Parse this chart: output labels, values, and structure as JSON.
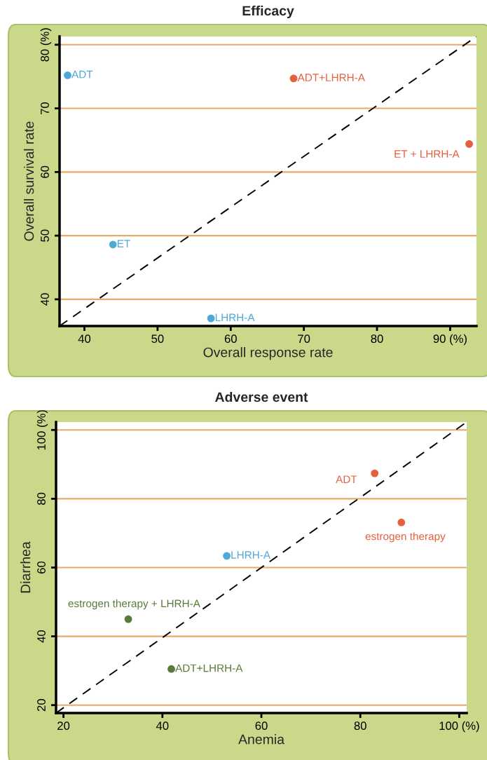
{
  "chart_data": [
    {
      "type": "scatter",
      "title": "Efficacy",
      "xlabel": "Overall response rate",
      "ylabel": "Overall survival rate",
      "xlim": [
        36.6,
        93.6
      ],
      "ylim": [
        35.8,
        81.3
      ],
      "xticks": [
        40,
        50,
        60,
        70,
        80,
        {
          "value": 90,
          "label": "90 (%)"
        }
      ],
      "yticks": [
        40,
        50,
        60,
        70,
        {
          "value": 80,
          "label": "80 (%)"
        }
      ],
      "grid": "y",
      "series": [
        {
          "color": "#4ea8d8",
          "marker": "circle",
          "x": [
            37.7,
            43.9,
            57.3
          ],
          "values": [
            75.2,
            48.6,
            37.0
          ]
        },
        {
          "color": "#e5603f",
          "marker": "circle",
          "x": [
            68.6,
            92.6
          ],
          "values": [
            74.7,
            64.4
          ]
        },
        {
          "type": "line",
          "marker": "none",
          "line_style": "dashed",
          "color": "#000000",
          "x": [
            36.6,
            93.6
          ],
          "values": [
            35.8,
            81.3
          ]
        }
      ],
      "annotations": [
        {
          "text": "ADT",
          "x": 37.7,
          "y": 75.2
        },
        {
          "text": "ET",
          "x": 43.9,
          "y": 48.6
        },
        {
          "text": "LHRH-A",
          "x": 57.3,
          "y": 37.0
        },
        {
          "text": "ADT+LHRH-A",
          "x": 68.6,
          "y": 74.7
        },
        {
          "text": "ET + LHRH-A",
          "x": 92.6,
          "y": 64.4
        }
      ]
    },
    {
      "type": "scatter",
      "title": "Adverse event",
      "xlabel": "Anemia",
      "ylabel": "Diarrhea",
      "xlim": [
        18.5,
        101.5
      ],
      "ylim": [
        17.7,
        102.3
      ],
      "xticks": [
        20,
        40,
        60,
        80,
        {
          "value": 100,
          "label": "100 (%)"
        }
      ],
      "yticks": [
        20,
        40,
        60,
        80,
        {
          "value": 100,
          "label": "100 (%)"
        }
      ],
      "grid": "y",
      "series": [
        {
          "color": "#e5603f",
          "marker": "circle",
          "x": [
            82.9,
            88.3
          ],
          "values": [
            87.4,
            73.1
          ]
        },
        {
          "color": "#4ea8d8",
          "marker": "circle",
          "x": [
            53.0
          ],
          "values": [
            63.4
          ]
        },
        {
          "color": "#5a7a3a",
          "marker": "circle",
          "x": [
            33.1,
            41.8
          ],
          "values": [
            45.0,
            30.5
          ]
        },
        {
          "type": "line",
          "marker": "none",
          "line_style": "dashed",
          "color": "#000000",
          "x": [
            18.5,
            101.5
          ],
          "values": [
            17.7,
            102.3
          ]
        }
      ],
      "annotations": [
        {
          "text": "ADT",
          "x": 82.9,
          "y": 87.4
        },
        {
          "text": "estrogen therapy",
          "x": 88.3,
          "y": 73.1
        },
        {
          "text": "LHRH-A",
          "x": 53.0,
          "y": 63.4
        },
        {
          "text": "estrogen therapy + LHRH-A",
          "x": 33.1,
          "y": 45.0
        },
        {
          "text": "ADT+LHRH-A",
          "x": 41.8,
          "y": 30.5
        }
      ]
    }
  ]
}
